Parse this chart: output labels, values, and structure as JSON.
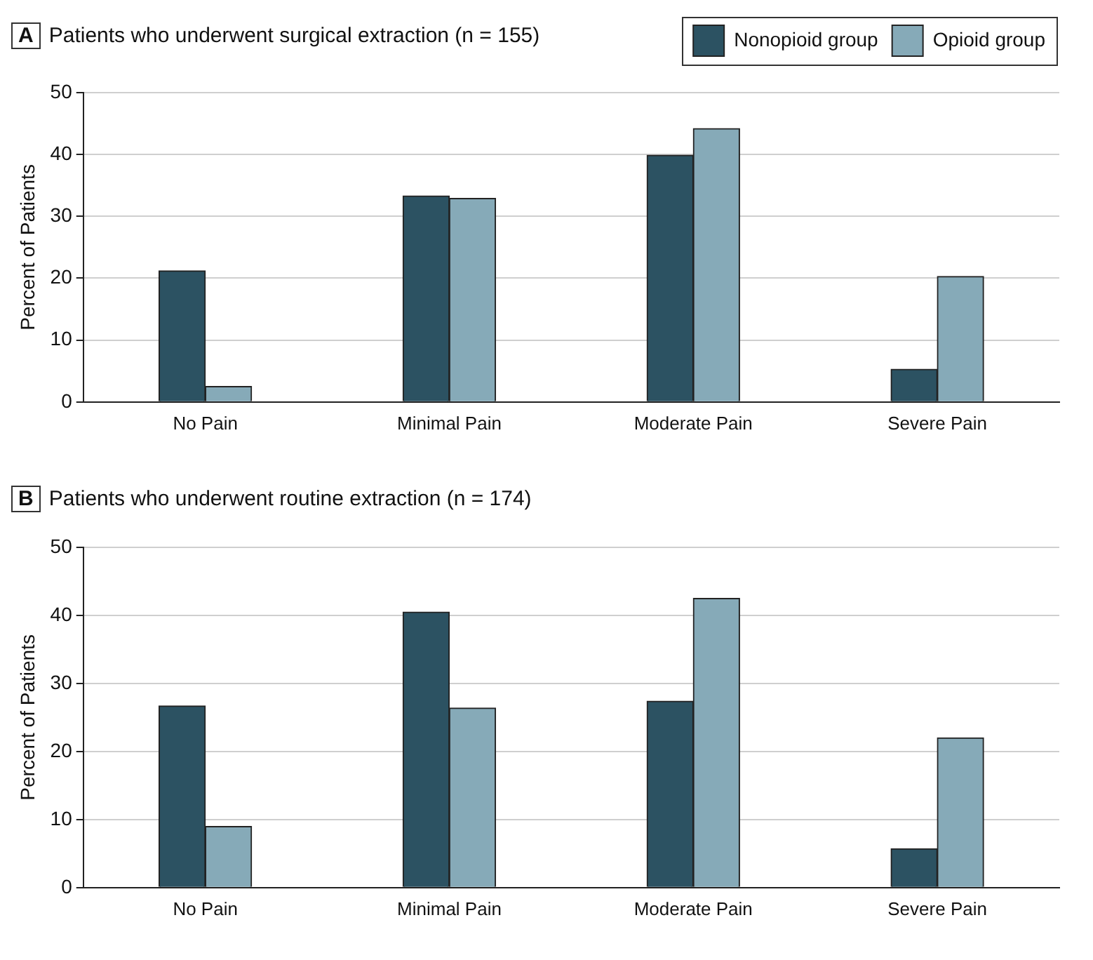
{
  "chart_data": [
    {
      "type": "bar",
      "title": "Patients who underwent surgical extraction (n = 155)",
      "annotations": [
        "A"
      ],
      "ylabel": "Percent of Patients",
      "categories": [
        "No Pain",
        "Minimal Pain",
        "Moderate Pain",
        "Severe Pain"
      ],
      "series": [
        {
          "name": "Nonopioid group",
          "color": "#2c5262",
          "values": [
            21.2,
            33.3,
            39.9,
            5.3
          ]
        },
        {
          "name": "Opioid group",
          "color": "#86aab8",
          "values": [
            2.5,
            32.9,
            44.2,
            20.3
          ]
        }
      ],
      "ylim": [
        0,
        50
      ],
      "yticks": [
        0,
        10,
        20,
        30,
        40,
        50
      ],
      "grid": "y",
      "legend": "top right"
    },
    {
      "type": "bar",
      "title": "Patients who underwent routine extraction (n = 174)",
      "annotations": [
        "B"
      ],
      "ylabel": "Percent of Patients",
      "categories": [
        "No Pain",
        "Minimal Pain",
        "Moderate Pain",
        "Severe Pain"
      ],
      "series": [
        {
          "color": "#2c5262",
          "values": [
            26.7,
            40.5,
            27.4,
            5.7
          ]
        },
        {
          "color": "#86aab8",
          "values": [
            9.0,
            26.4,
            42.5,
            22.0
          ]
        }
      ],
      "ylim": [
        0,
        50
      ],
      "yticks": [
        0,
        10,
        20,
        30,
        40,
        50
      ],
      "grid": "y"
    }
  ]
}
